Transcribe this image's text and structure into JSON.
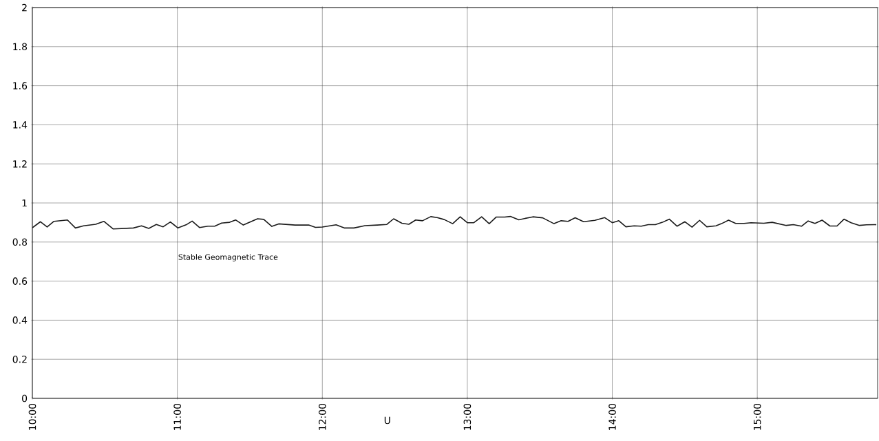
{
  "chart_data": {
    "type": "line",
    "xlabel": "U",
    "annotations": [
      "Stable Geomagnetic Trace"
    ],
    "x": [
      10.0,
      10.056,
      10.102,
      10.149,
      10.242,
      10.297,
      10.353,
      10.437,
      10.493,
      10.558,
      10.697,
      10.753,
      10.803,
      10.855,
      10.902,
      10.952,
      11.004,
      11.06,
      11.102,
      11.154,
      11.211,
      11.258,
      11.305,
      11.361,
      11.402,
      11.455,
      11.553,
      11.596,
      11.652,
      11.699,
      11.812,
      11.906,
      11.953,
      12.0,
      12.095,
      12.151,
      12.218,
      12.294,
      12.379,
      12.445,
      12.492,
      12.549,
      12.597,
      12.644,
      12.691,
      12.748,
      12.792,
      12.841,
      12.899,
      12.951,
      13.0,
      13.045,
      13.099,
      13.151,
      13.2,
      13.258,
      13.297,
      13.355,
      13.452,
      13.52,
      13.598,
      13.647,
      13.695,
      13.744,
      13.802,
      13.88,
      13.948,
      14.0,
      14.045,
      14.094,
      14.151,
      14.2,
      14.248,
      14.297,
      14.346,
      14.394,
      14.447,
      14.501,
      14.55,
      14.602,
      14.652,
      14.715,
      14.753,
      14.802,
      14.851,
      14.909,
      14.957,
      15.045,
      15.103,
      15.2,
      15.249,
      15.305,
      15.351,
      15.398,
      15.447,
      15.501,
      15.55,
      15.598,
      15.647,
      15.705,
      15.753,
      15.821
    ],
    "series": [
      {
        "color": "#1a1a1a",
        "values": [
          0.873,
          0.904,
          0.877,
          0.906,
          0.913,
          0.872,
          0.883,
          0.891,
          0.906,
          0.867,
          0.872,
          0.883,
          0.87,
          0.89,
          0.878,
          0.903,
          0.872,
          0.888,
          0.907,
          0.874,
          0.881,
          0.881,
          0.897,
          0.901,
          0.913,
          0.887,
          0.919,
          0.916,
          0.88,
          0.893,
          0.887,
          0.887,
          0.875,
          0.877,
          0.888,
          0.872,
          0.872,
          0.884,
          0.887,
          0.89,
          0.919,
          0.896,
          0.891,
          0.913,
          0.909,
          0.93,
          0.925,
          0.915,
          0.894,
          0.929,
          0.899,
          0.899,
          0.929,
          0.894,
          0.928,
          0.928,
          0.931,
          0.914,
          0.929,
          0.924,
          0.894,
          0.909,
          0.906,
          0.924,
          0.904,
          0.911,
          0.925,
          0.899,
          0.909,
          0.878,
          0.883,
          0.881,
          0.889,
          0.889,
          0.901,
          0.917,
          0.881,
          0.904,
          0.876,
          0.911,
          0.878,
          0.883,
          0.894,
          0.912,
          0.895,
          0.895,
          0.899,
          0.896,
          0.901,
          0.885,
          0.889,
          0.881,
          0.908,
          0.895,
          0.912,
          0.882,
          0.882,
          0.917,
          0.899,
          0.885,
          0.888,
          0.889
        ]
      }
    ],
    "xlim": [
      10,
      15.83
    ],
    "ylim": [
      0,
      2
    ],
    "xticks": [
      {
        "value": 10,
        "label": "10:00"
      },
      {
        "value": 11,
        "label": "11:00"
      },
      {
        "value": 12,
        "label": "12:00"
      },
      {
        "value": 13,
        "label": "13:00"
      },
      {
        "value": 14,
        "label": "14:00"
      },
      {
        "value": 15,
        "label": "15:00"
      }
    ],
    "yticks": [
      0,
      0.2,
      0.4,
      0.6,
      0.8,
      1,
      1.2,
      1.4,
      1.6,
      1.8,
      2
    ],
    "grid": true,
    "marker": "none",
    "line_style": "solid"
  }
}
